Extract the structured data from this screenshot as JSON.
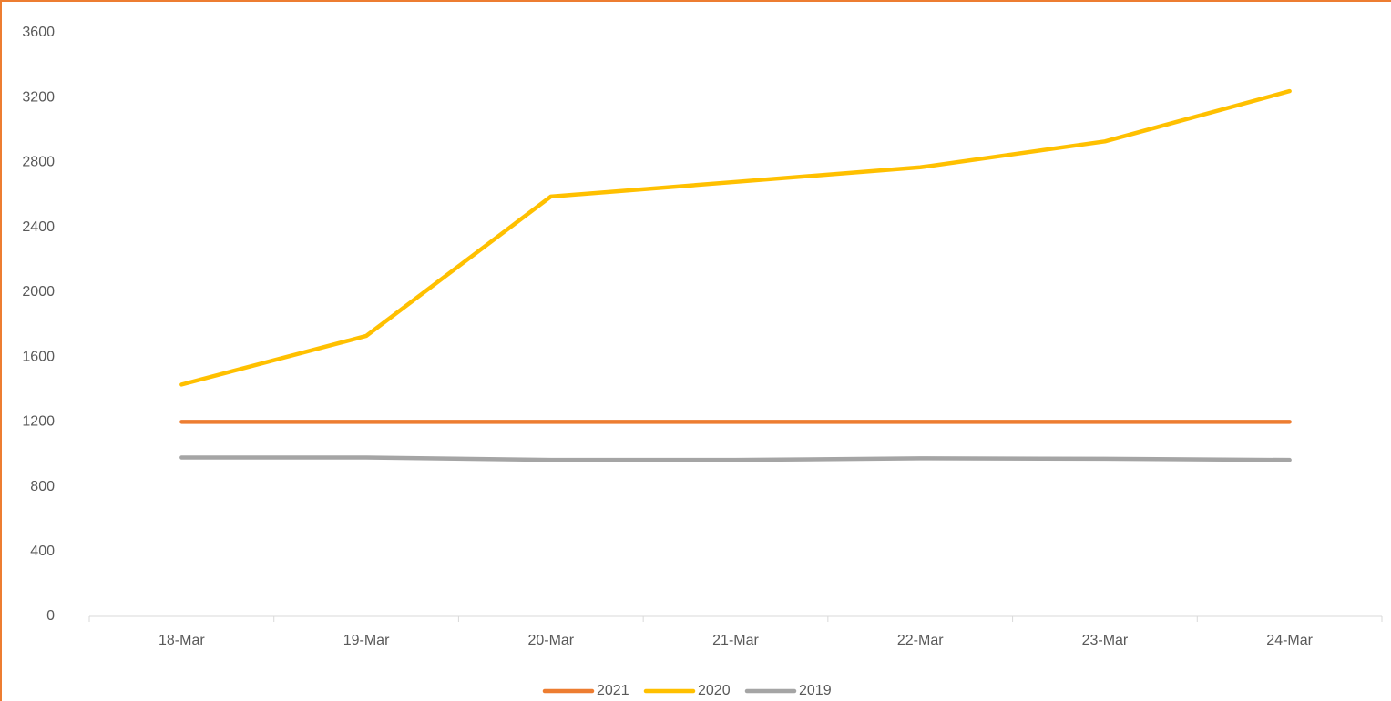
{
  "chart_data": {
    "type": "line",
    "categories": [
      "18-Mar",
      "19-Mar",
      "20-Mar",
      "21-Mar",
      "22-Mar",
      "23-Mar",
      "24-Mar"
    ],
    "series": [
      {
        "name": "2021",
        "color": "#ED7D31",
        "values": [
          1200,
          1200,
          1200,
          1200,
          1200,
          1200,
          1200
        ]
      },
      {
        "name": "2020",
        "color": "#FFC000",
        "values": [
          1430,
          1730,
          2590,
          2680,
          2770,
          2930,
          3240
        ]
      },
      {
        "name": "2019",
        "color": "#A5A5A5",
        "values": [
          980,
          980,
          965,
          965,
          975,
          972,
          965
        ]
      }
    ],
    "ylim": [
      0,
      3600
    ],
    "yticks": [
      0,
      400,
      800,
      1200,
      1600,
      2000,
      2400,
      2800,
      3200,
      3600
    ],
    "grid": false,
    "legend": "bottom"
  }
}
